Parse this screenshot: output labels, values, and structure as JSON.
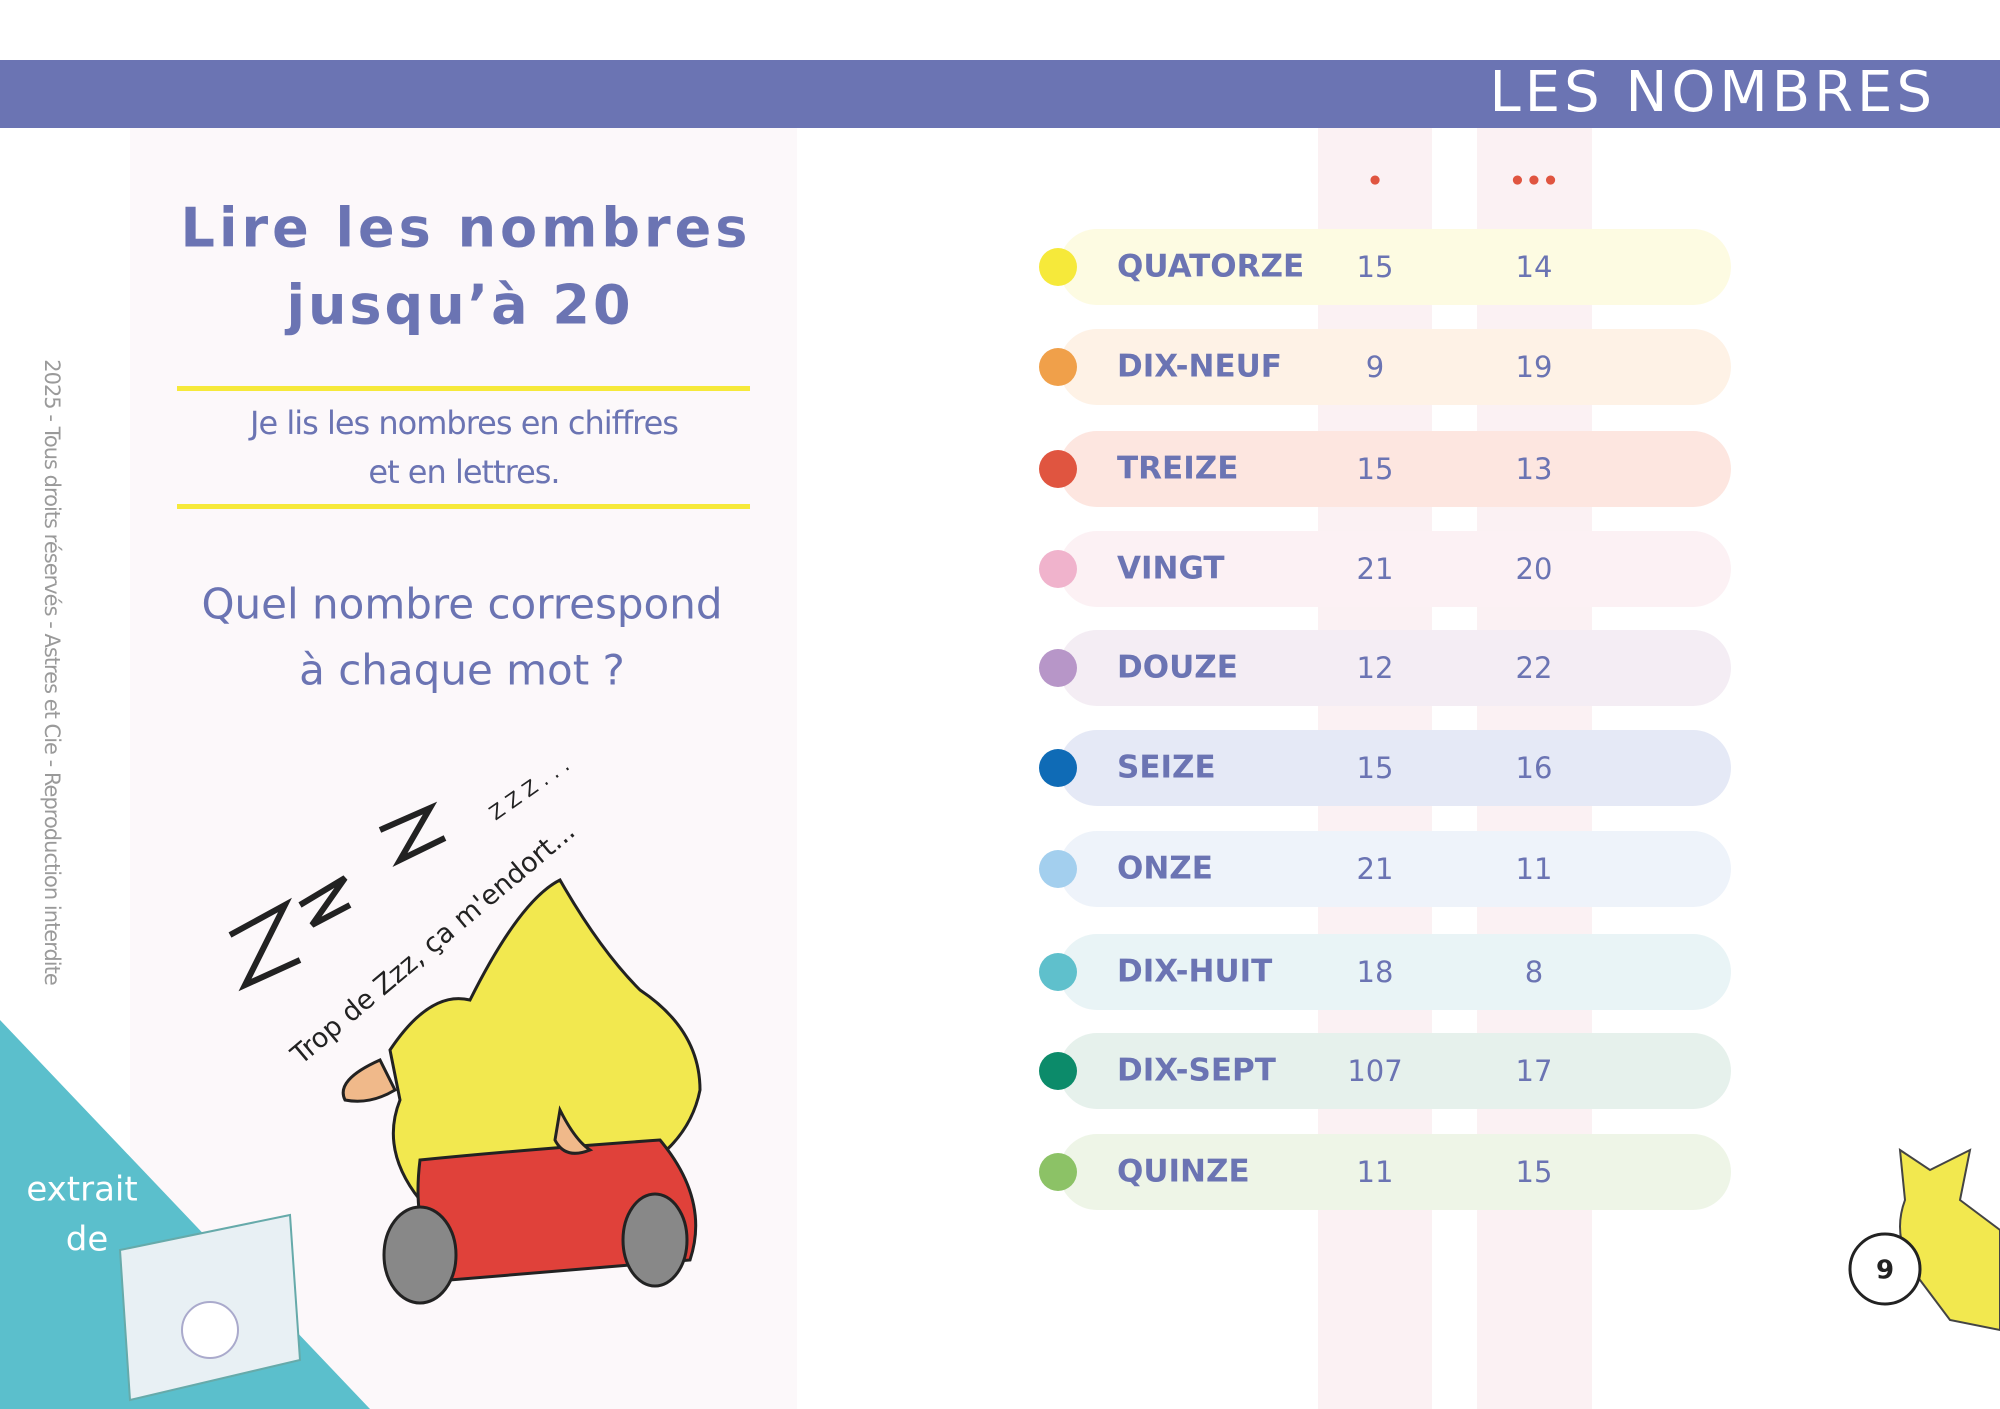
{
  "header": {
    "title": "LES NOMBRES"
  },
  "left": {
    "title": [
      "Lire les nombres",
      "jusqu’à 20"
    ],
    "instruction": [
      "Je lis les nombres en chiffres",
      "et en lettres."
    ],
    "question": [
      "Quel nombre correspond",
      "à chaque mot ?"
    ],
    "zzz": "Z Z Z . . .",
    "speech": "Trop de Zzz, ça m'endort..."
  },
  "copyright": "2025 - Tous droits réservés - Astres et Cie - Reproduction interdite",
  "corner": [
    "extrait",
    "de"
  ],
  "page_number": "9",
  "table": {
    "markers": [
      "•",
      "•••"
    ],
    "rows": [
      {
        "word": "QUATORZE",
        "choices": [
          "15",
          "14"
        ],
        "color": "#f6e93a",
        "band": "#fdfbe2"
      },
      {
        "word": "DIX-NEUF",
        "choices": [
          "9",
          "19"
        ],
        "color": "#f0a04a",
        "band": "#fef2e6"
      },
      {
        "word": "TREIZE",
        "choices": [
          "15",
          "13"
        ],
        "color": "#e05540",
        "band": "#fde6e0"
      },
      {
        "word": "VINGT",
        "choices": [
          "21",
          "20"
        ],
        "color": "#f0b3cc",
        "band": "#fcf1f4"
      },
      {
        "word": "DOUZE",
        "choices": [
          "12",
          "22"
        ],
        "color": "#b796c8",
        "band": "#f4edf4"
      },
      {
        "word": "SEIZE",
        "choices": [
          "15",
          "16"
        ],
        "color": "#0f6bb6",
        "band": "#e5e9f6"
      },
      {
        "word": "ONZE",
        "choices": [
          "21",
          "11"
        ],
        "color": "#a3cfee",
        "band": "#eef3fa"
      },
      {
        "word": "DIX-HUIT",
        "choices": [
          "18",
          "8"
        ],
        "color": "#5fc0cc",
        "band": "#e9f4f6"
      },
      {
        "word": "DIX-SEPT",
        "choices": [
          "107",
          "17"
        ],
        "color": "#0c8b6a",
        "band": "#e6f1ec"
      },
      {
        "word": "QUINZE",
        "choices": [
          "11",
          "15"
        ],
        "color": "#8cc266",
        "band": "#eef5e7"
      }
    ]
  }
}
